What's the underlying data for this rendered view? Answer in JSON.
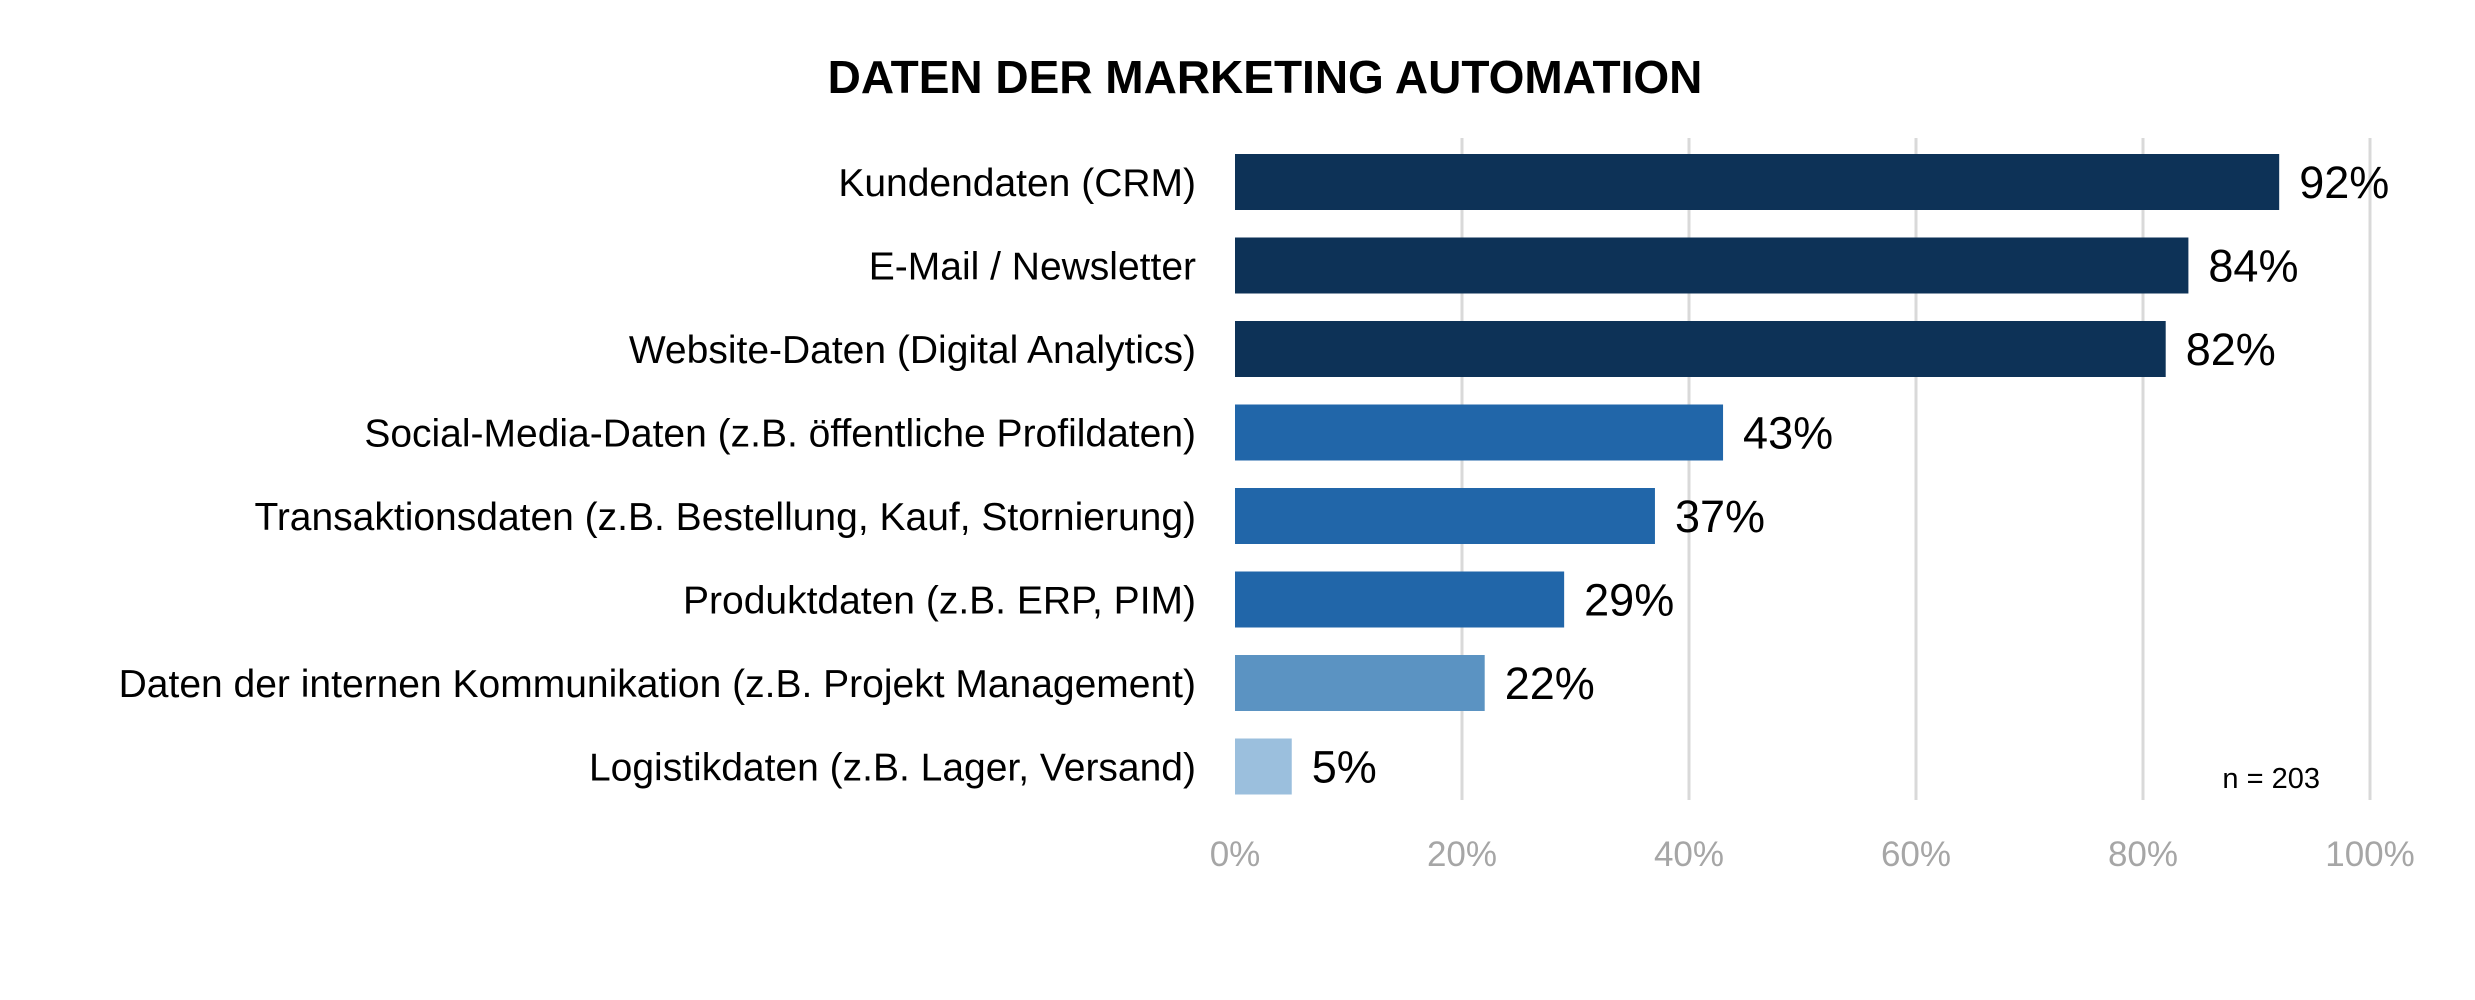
{
  "chart_data": {
    "type": "bar",
    "orientation": "horizontal",
    "title": "DATEN DER MARKETING AUTOMATION",
    "categories": [
      "Kundendaten (CRM)",
      "E-Mail / Newsletter",
      "Website-Daten (Digital Analytics)",
      "Social-Media-Daten (z.B. öffentliche Profildaten)",
      "Transaktionsdaten (z.B. Bestellung, Kauf, Stornierung)",
      "Produktdaten (z.B. ERP, PIM)",
      "Daten der internen Kommunikation (z.B. Projekt Management)",
      "Logistikdaten (z.B. Lager, Versand)"
    ],
    "values": [
      92,
      84,
      82,
      43,
      37,
      29,
      22,
      5
    ],
    "value_labels": [
      "92%",
      "84%",
      "82%",
      "43%",
      "37%",
      "29%",
      "22%",
      "5%"
    ],
    "bar_colors": [
      "#0d3257",
      "#0d3257",
      "#0d3257",
      "#2166a9",
      "#2166a9",
      "#2166a9",
      "#5b93c2",
      "#9bbfdd"
    ],
    "xlim": [
      0,
      100
    ],
    "x_ticks": [
      0,
      20,
      40,
      60,
      80,
      100
    ],
    "x_tick_labels": [
      "0%",
      "20%",
      "40%",
      "60%",
      "80%",
      "100%"
    ],
    "grid": "vertical",
    "note": "n = 203"
  }
}
